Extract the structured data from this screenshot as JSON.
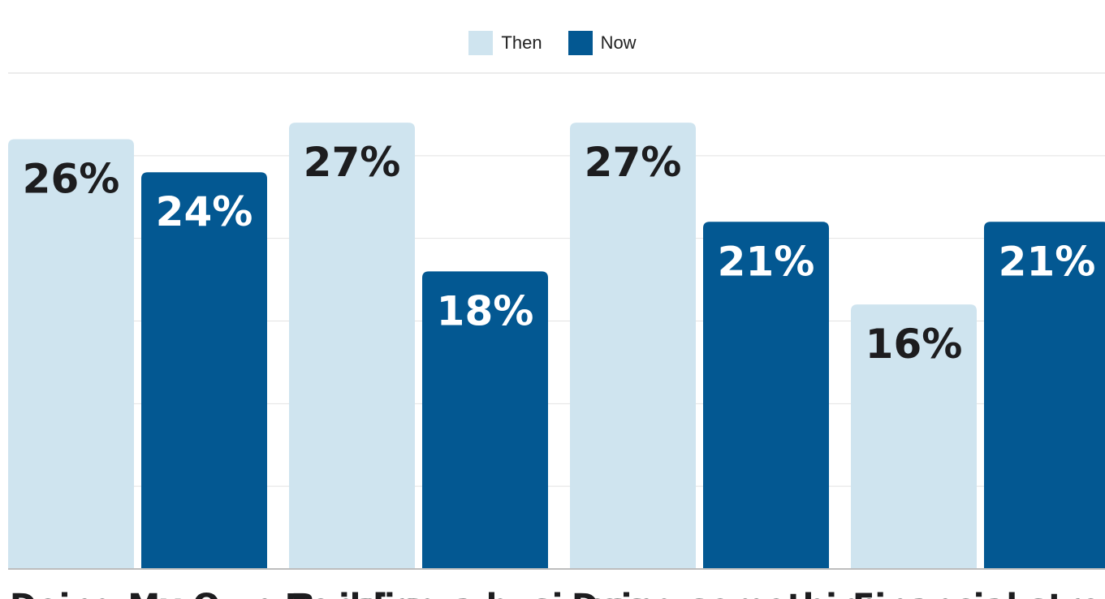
{
  "chart_data": {
    "type": "bar",
    "categories": [
      "Doing My Own Repairs",
      "Building a business",
      "Doing something",
      "Financial stress"
    ],
    "series": [
      {
        "name": "Then",
        "values": [
          26,
          27,
          27,
          16
        ],
        "color": "#cfe4ef",
        "label_color": "#1d1d1f"
      },
      {
        "name": "Now",
        "values": [
          24,
          18,
          21,
          21
        ],
        "color": "#035892",
        "label_color": "#ffffff"
      }
    ],
    "value_suffix": "%",
    "ylim": [
      0,
      30
    ],
    "grid": true,
    "legend": "top-center",
    "title": "",
    "xlabel": "",
    "ylabel": ""
  }
}
